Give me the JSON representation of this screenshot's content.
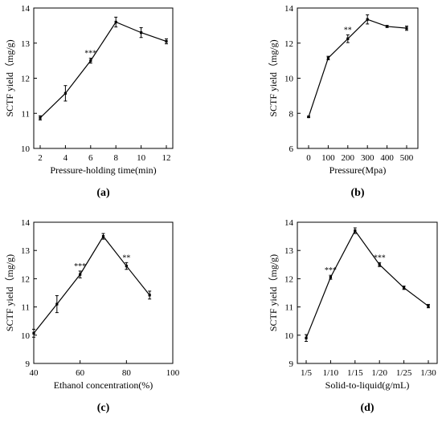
{
  "chart_data": [
    {
      "type": "line",
      "panel_label": "(a)",
      "xlabel": "Pressure-holding time(min)",
      "ylabel": "SCTF yield（mg/g)",
      "x": [
        "2",
        "4",
        "6",
        "8",
        "10",
        "12"
      ],
      "values": [
        10.87,
        11.57,
        12.5,
        13.6,
        13.3,
        13.05
      ],
      "errors": [
        0.06,
        0.22,
        0.07,
        0.14,
        0.14,
        0.07
      ],
      "ylim": [
        10,
        14
      ],
      "yticks": [
        "10",
        "11",
        "12",
        "13",
        "14"
      ],
      "annotations": [
        {
          "x": "6",
          "text": "***"
        }
      ]
    },
    {
      "type": "line",
      "panel_label": "(b)",
      "xlabel": "Pressure(Mpa)",
      "ylabel": "SCTF yield（mg/g)",
      "x": [
        "0",
        "100",
        "200",
        "300",
        "400",
        "500"
      ],
      "values": [
        7.8,
        11.15,
        12.25,
        13.35,
        12.95,
        12.85
      ],
      "errors": [
        0.04,
        0.1,
        0.22,
        0.26,
        0.06,
        0.12
      ],
      "ylim": [
        6,
        14
      ],
      "yticks": [
        "6",
        "8",
        "10",
        "12",
        "14"
      ],
      "annotations": [
        {
          "x": "200",
          "text": "**"
        }
      ]
    },
    {
      "type": "line",
      "panel_label": "(c)",
      "xlabel": "Ethanol concentration(%)",
      "ylabel": "SCTF yield（mg/g)",
      "x": [
        "40",
        "50",
        "60",
        "70",
        "80",
        "90"
      ],
      "values": [
        10.07,
        11.1,
        12.15,
        13.5,
        12.45,
        11.42
      ],
      "errors": [
        0.14,
        0.3,
        0.12,
        0.1,
        0.12,
        0.14
      ],
      "ylim": [
        9,
        14
      ],
      "yticks": [
        "9",
        "10",
        "11",
        "12",
        "13",
        "14"
      ],
      "xticks": [
        "40",
        "60",
        "80",
        "100"
      ],
      "annotations": [
        {
          "x": "60",
          "text": "***"
        },
        {
          "x": "80",
          "text": "**"
        }
      ]
    },
    {
      "type": "line",
      "panel_label": "(d)",
      "xlabel": "Solid-to-liquid(g/mL)",
      "ylabel": "SCTF yield（mg/g)",
      "x": [
        "1/5",
        "1/10",
        "1/15",
        "1/20",
        "1/25",
        "1/30"
      ],
      "values": [
        9.9,
        12.05,
        13.7,
        12.5,
        11.68,
        11.03
      ],
      "errors": [
        0.12,
        0.07,
        0.1,
        0.07,
        0.06,
        0.06
      ],
      "ylim": [
        9,
        14
      ],
      "yticks": [
        "9",
        "10",
        "11",
        "12",
        "13",
        "14"
      ],
      "annotations": [
        {
          "x": "1/10",
          "text": "***"
        },
        {
          "x": "1/20",
          "text": "***"
        }
      ]
    }
  ]
}
